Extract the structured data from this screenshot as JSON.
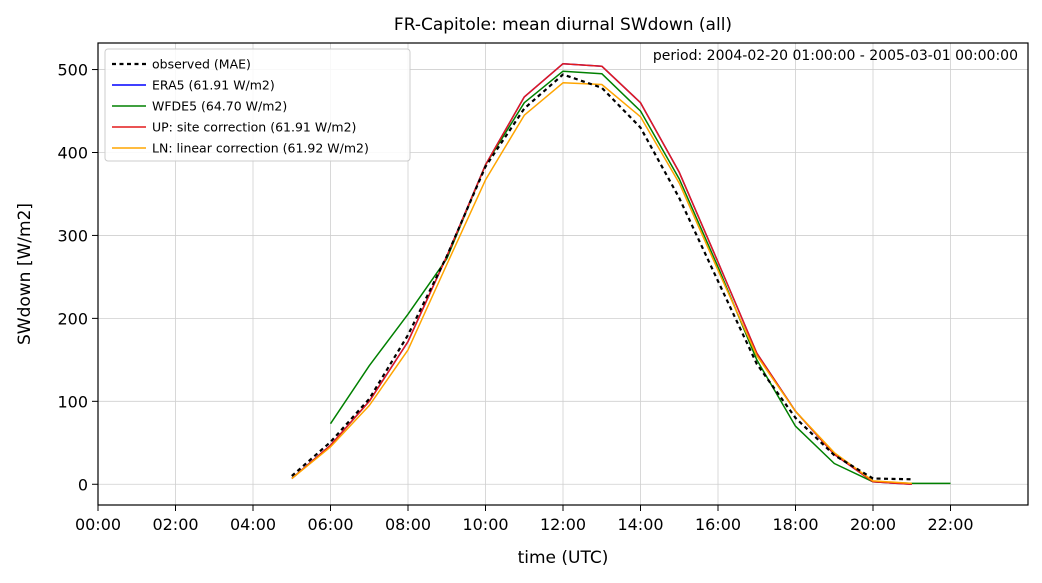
{
  "chart_data": {
    "type": "line",
    "title": "FR-Capitole: mean diurnal SWdown (all)",
    "annotation": "period: 2004-02-20 01:00:00 - 2005-03-01 00:00:00",
    "xlabel": "time (UTC)",
    "ylabel": "SWdown [W/m2]",
    "xlim": [
      0,
      24
    ],
    "ylim": [
      -25,
      532
    ],
    "x_ticks": [
      0,
      2,
      4,
      6,
      8,
      10,
      12,
      14,
      16,
      18,
      20,
      22
    ],
    "x_tick_labels": [
      "00:00",
      "02:00",
      "04:00",
      "06:00",
      "08:00",
      "10:00",
      "12:00",
      "14:00",
      "16:00",
      "18:00",
      "20:00",
      "22:00"
    ],
    "y_ticks": [
      0,
      100,
      200,
      300,
      400,
      500
    ],
    "y_tick_labels": [
      "0",
      "100",
      "200",
      "300",
      "400",
      "500"
    ],
    "grid": true,
    "legend_position": "top-left",
    "series": [
      {
        "name": "observed (MAE)",
        "color": "#000000",
        "style": "dotted",
        "x": [
          5,
          6,
          7,
          8,
          9,
          10,
          11,
          12,
          13,
          14,
          15,
          16,
          17,
          18,
          19,
          20,
          21
        ],
        "values": [
          10,
          51,
          103,
          180,
          275,
          383,
          453,
          494,
          478,
          430,
          345,
          245,
          145,
          80,
          35,
          7,
          6
        ]
      },
      {
        "name": "ERA5 (61.91 W/m2)",
        "color": "#0000ff",
        "style": "solid",
        "x": [
          5,
          6,
          7,
          8,
          9,
          10,
          11,
          12,
          13,
          14,
          15,
          16,
          17,
          18,
          19,
          20,
          21
        ],
        "values": [
          7,
          47,
          100,
          172,
          275,
          385,
          467,
          507,
          504,
          460,
          376,
          268,
          158,
          88,
          36,
          3,
          0
        ]
      },
      {
        "name": "WFDE5 (64.70 W/m2)",
        "color": "#008000",
        "style": "solid",
        "x": [
          6,
          7,
          8,
          9,
          10,
          11,
          12,
          13,
          14,
          15,
          16,
          17,
          18,
          19,
          20,
          21,
          22
        ],
        "values": [
          73,
          143,
          205,
          272,
          385,
          460,
          498,
          495,
          450,
          368,
          262,
          150,
          70,
          25,
          3,
          1,
          1
        ]
      },
      {
        "name": "UP: site correction (61.91 W/m2)",
        "color": "#e41a1c",
        "style": "solid",
        "x": [
          5,
          6,
          7,
          8,
          9,
          10,
          11,
          12,
          13,
          14,
          15,
          16,
          17,
          18,
          19,
          20,
          21
        ],
        "values": [
          7,
          47,
          100,
          172,
          275,
          385,
          467,
          507,
          504,
          460,
          376,
          268,
          158,
          88,
          36,
          3,
          0
        ]
      },
      {
        "name": "LN: linear correction (61.92 W/m2)",
        "color": "#ffa500",
        "style": "solid",
        "x": [
          5,
          6,
          7,
          8,
          9,
          10,
          11,
          12,
          13,
          14,
          15,
          16,
          17,
          18,
          19,
          20,
          21
        ],
        "values": [
          7,
          45,
          95,
          162,
          265,
          367,
          445,
          484,
          482,
          443,
          363,
          258,
          155,
          88,
          38,
          4,
          1
        ]
      }
    ]
  }
}
